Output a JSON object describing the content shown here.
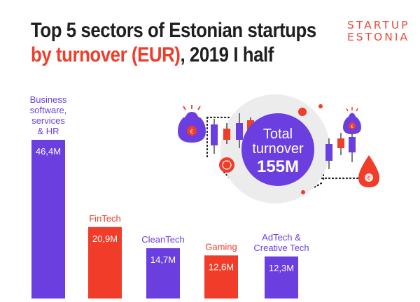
{
  "header": {
    "title_line1": "Top 5 sectors of Estonian startups",
    "title_accent": "by turnover (EUR)",
    "title_rest": ", 2019 I half"
  },
  "brand": {
    "line1": "STARTUP",
    "line2": "ESTONIA"
  },
  "total": {
    "line1": "Total",
    "line2": "turnover",
    "value": "155M"
  },
  "colors": {
    "purple": "#6b3ee0",
    "red": "#f03c28",
    "dark": "#1f1f1f",
    "grey": "#e8e8e8"
  },
  "chart_data": {
    "type": "bar",
    "title": "Top 5 sectors of Estonian startups by turnover (EUR), 2019 I half",
    "unit": "M EUR",
    "ylim": [
      0,
      46.4
    ],
    "categories": [
      {
        "lines": [
          "Business",
          "software,",
          "services",
          "& HR"
        ],
        "label": "46,4M",
        "value": 46.4,
        "color": "purple"
      },
      {
        "lines": [
          "FinTech"
        ],
        "label": "20,9M",
        "value": 20.9,
        "color": "red"
      },
      {
        "lines": [
          "CleanTech"
        ],
        "label": "14,7M",
        "value": 14.7,
        "color": "purple"
      },
      {
        "lines": [
          "Gaming"
        ],
        "label": "12,6M",
        "value": 12.6,
        "color": "red"
      },
      {
        "lines": [
          "AdTech &",
          "Creative Tech"
        ],
        "label": "12,3M",
        "value": 12.3,
        "color": "purple"
      }
    ]
  }
}
